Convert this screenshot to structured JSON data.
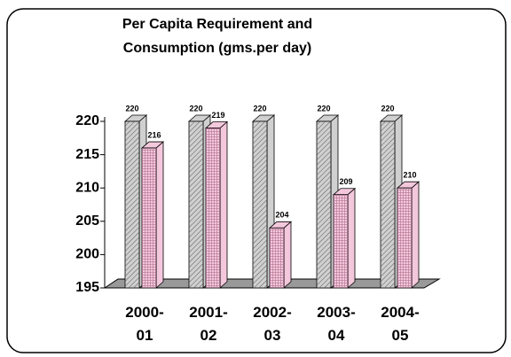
{
  "chart_data": {
    "type": "bar3d",
    "title": "Per Capita Requirement and Consumption (gms.per day)",
    "categories": [
      "2000-01",
      "2001-02",
      "2002-03",
      "2003-04",
      "2004-05"
    ],
    "series": [
      {
        "color": "#d0d0d0",
        "values": [
          220,
          220,
          220,
          220,
          220
        ]
      },
      {
        "color": "#f4c8dc",
        "values": [
          216,
          219,
          204,
          209,
          210
        ]
      }
    ],
    "ylim": [
      195,
      220
    ],
    "yticks": [
      195,
      200,
      205,
      210,
      215,
      220
    ]
  }
}
